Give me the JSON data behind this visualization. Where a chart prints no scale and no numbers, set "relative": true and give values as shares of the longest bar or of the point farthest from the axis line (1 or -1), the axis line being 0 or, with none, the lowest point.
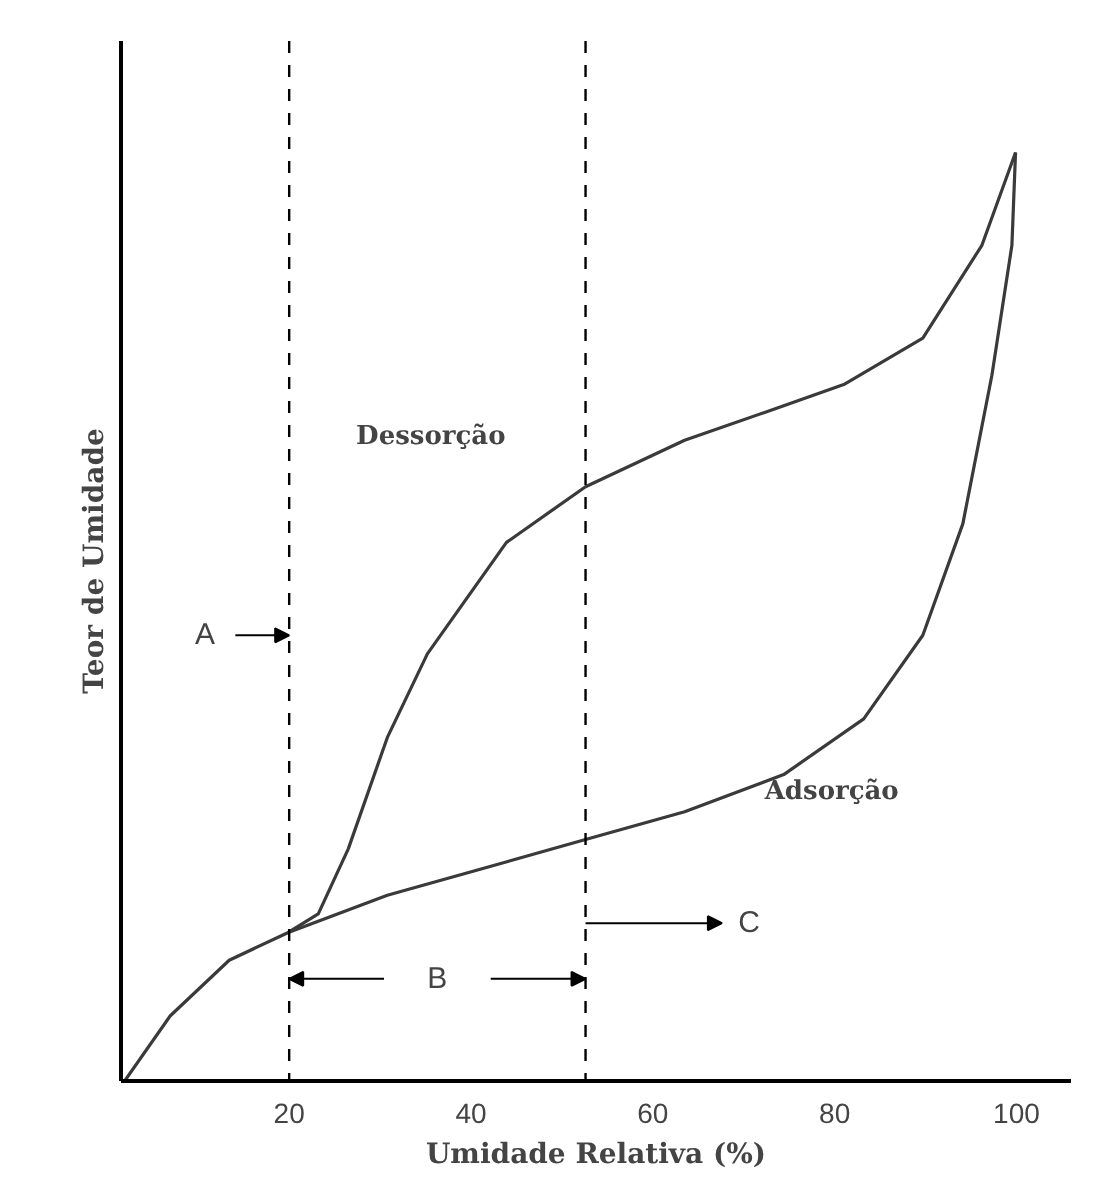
{
  "chart_data": {
    "type": "line",
    "relative": true,
    "xlabel": "Umidade Relativa (%)",
    "ylabel": "Teor de Umidade",
    "xlim": [
      1.5,
      106
    ],
    "xticks": [
      20,
      40,
      60,
      80,
      100
    ],
    "grid": false,
    "marker": "none",
    "line_style": "solid",
    "series": [
      {
        "name": "Dessorção",
        "color": "#3a3a3a",
        "x": [
          99.9,
          96.2,
          89.7,
          81.0,
          72.3,
          63.5,
          52.6,
          43.9,
          35.2,
          30.8,
          26.5,
          23.2,
          19.9
        ],
        "values": [
          1,
          0.9,
          0.8,
          0.75,
          0.72,
          0.69,
          0.64,
          0.58,
          0.46,
          0.37,
          0.25,
          0.18,
          0.16
        ]
      },
      {
        "name": "Adsorção",
        "color": "#3a3a3a",
        "x": [
          1.9,
          6.9,
          13.4,
          19.9,
          30.8,
          41.7,
          52.6,
          63.5,
          74.4,
          83.2,
          89.7,
          94.1,
          97.3,
          99.5,
          99.9
        ],
        "values": [
          0,
          0.07,
          0.13,
          0.16,
          0.2,
          0.23,
          0.26,
          0.29,
          0.33,
          0.39,
          0.48,
          0.6,
          0.76,
          0.9,
          1
        ]
      }
    ],
    "ref_lines": [
      {
        "axis": "x",
        "value": 20,
        "line_style": "dashed"
      },
      {
        "axis": "x",
        "value": 52.6,
        "line_style": "dashed"
      }
    ],
    "annotations": [
      "A",
      "B",
      "C"
    ]
  }
}
